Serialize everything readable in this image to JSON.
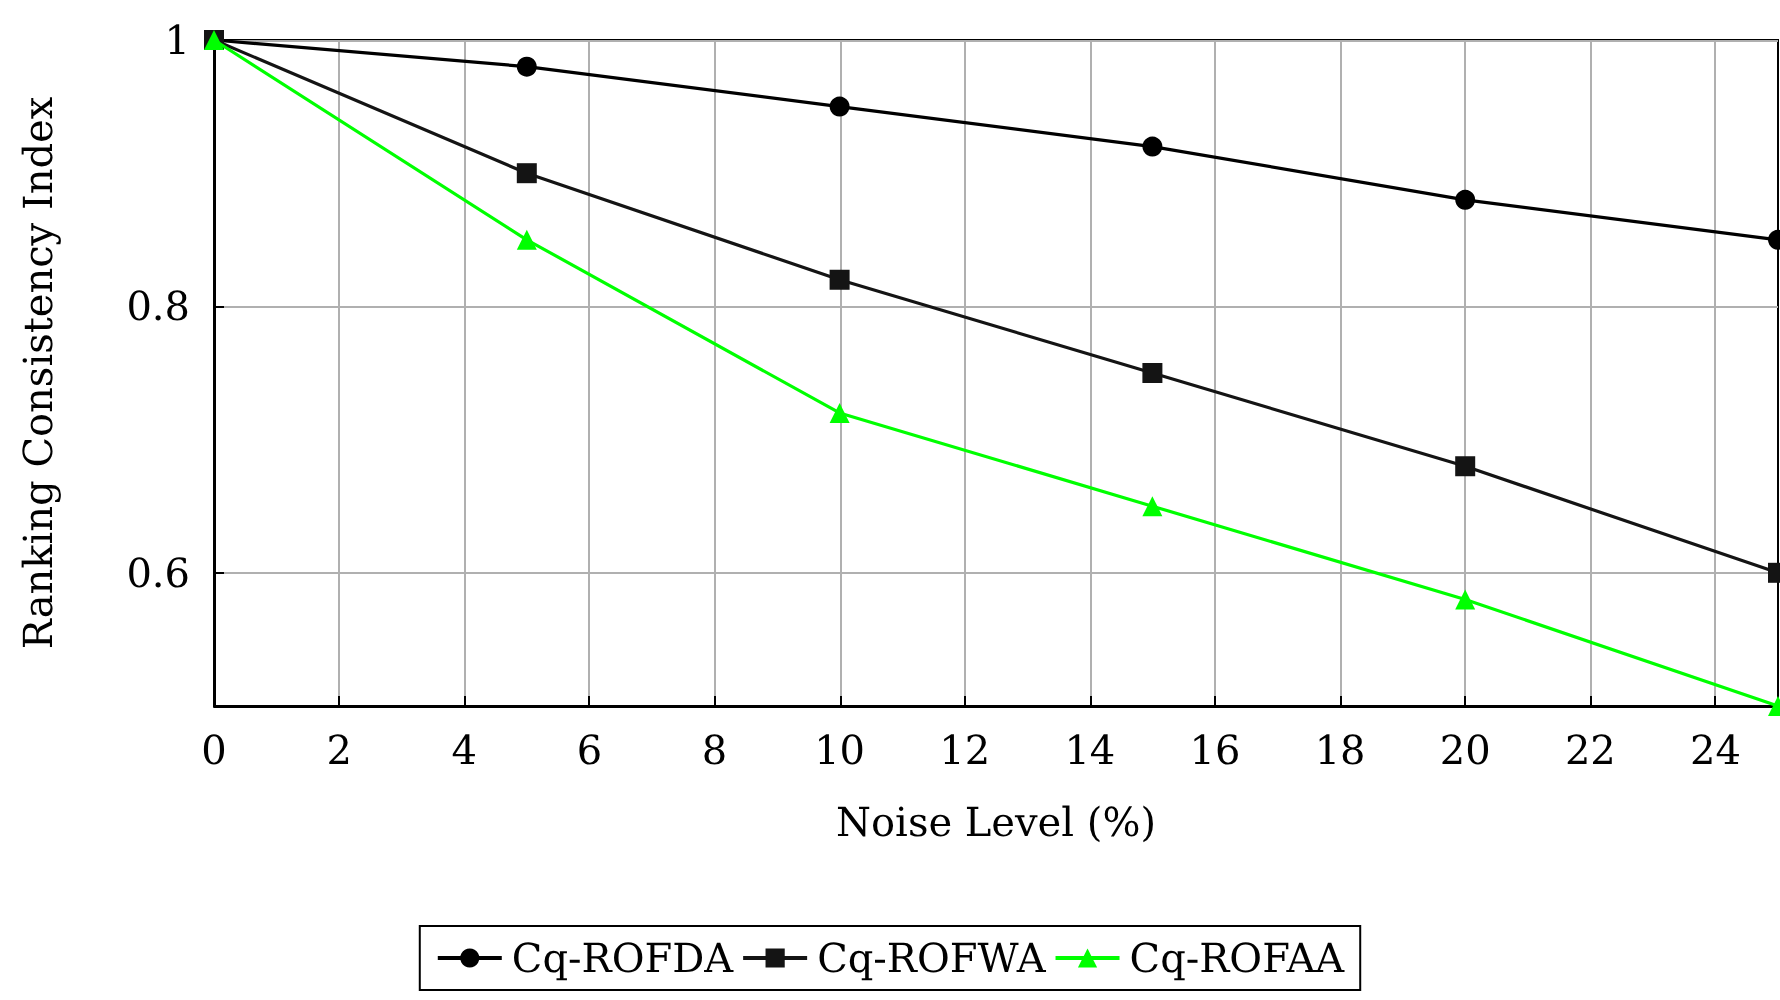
{
  "chart_data": {
    "type": "line",
    "xlabel": "Noise Level (%)",
    "ylabel": "Ranking Consistency Index",
    "x": [
      0,
      5,
      10,
      15,
      20,
      25
    ],
    "xlim": [
      0,
      25
    ],
    "xticks": [
      0,
      2,
      4,
      6,
      8,
      10,
      12,
      14,
      16,
      18,
      20,
      22,
      24
    ],
    "ylim": [
      0.5,
      1
    ],
    "yticks": [
      0.6,
      0.8,
      1
    ],
    "grid": true,
    "legend": "bottom",
    "series": [
      {
        "name": "Cq-ROFDA",
        "color": "#000000",
        "marker": "circle",
        "values": [
          1,
          0.98,
          0.95,
          0.92,
          0.88,
          0.85
        ]
      },
      {
        "name": "Cq-ROFWA",
        "color": "#141414",
        "marker": "square",
        "values": [
          1,
          0.9,
          0.82,
          0.75,
          0.68,
          0.6
        ]
      },
      {
        "name": "Cq-ROFAA",
        "color": "#00ff00",
        "marker": "triangle",
        "values": [
          1,
          0.85,
          0.72,
          0.65,
          0.58,
          0.5
        ]
      }
    ]
  }
}
